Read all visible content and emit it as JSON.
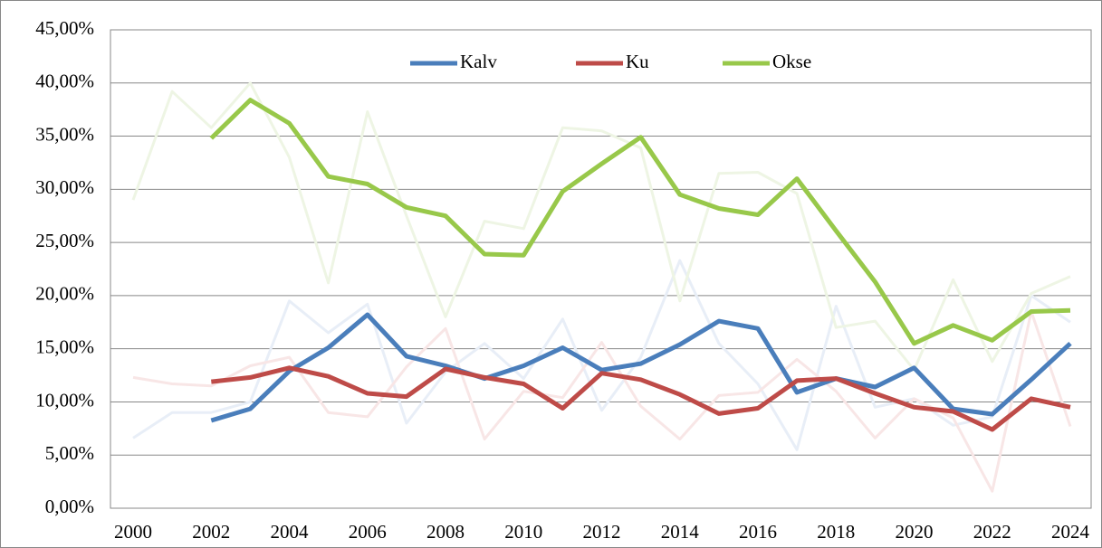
{
  "chart_data": {
    "type": "line",
    "categories": [
      "2000",
      null,
      "2002",
      null,
      "2004",
      null,
      "2006",
      null,
      "2008",
      null,
      "2010",
      null,
      "2012",
      null,
      "2014",
      null,
      "2016",
      null,
      "2018",
      null,
      "2020",
      null,
      "2022",
      null,
      "2024"
    ],
    "series": [
      {
        "color": "#e8eef7",
        "values": [
          6.6,
          9.0,
          9.0,
          10.0,
          19.5,
          16.5,
          19.2,
          8.0,
          12.8,
          15.5,
          12.2,
          17.8,
          9.2,
          14.2,
          23.3,
          15.5,
          11.7,
          5.5,
          19.0,
          9.5,
          10.3,
          7.8,
          8.6,
          20.0,
          17.5
        ]
      },
      {
        "color": "#f8e6e6",
        "values": [
          12.3,
          11.7,
          11.5,
          13.4,
          14.2,
          9.0,
          8.6,
          13.3,
          16.9,
          6.5,
          11.0,
          10.4,
          15.6,
          9.6,
          6.5,
          10.6,
          10.9,
          14.0,
          11.0,
          6.6,
          10.3,
          8.5,
          1.6,
          18.5,
          7.7
        ]
      },
      {
        "color": "#eef5e4",
        "values": [
          29.0,
          39.2,
          35.8,
          40.0,
          33.0,
          21.2,
          37.3,
          27.5,
          18.0,
          27.0,
          26.3,
          35.8,
          35.5,
          33.9,
          19.5,
          31.5,
          31.6,
          29.6,
          17.0,
          17.6,
          13.0,
          21.5,
          13.8,
          20.2,
          21.8
        ]
      },
      {
        "name": "Kalv",
        "color": "#4a7ebb",
        "values": [
          null,
          null,
          8.25,
          9.35,
          12.9,
          15.1,
          18.2,
          14.3,
          13.4,
          12.2,
          13.4,
          15.1,
          13.0,
          13.6,
          15.4,
          17.6,
          16.9,
          10.9,
          12.2,
          11.4,
          13.2,
          9.35,
          8.85,
          12.1,
          15.5
        ]
      },
      {
        "name": "Ku",
        "color": "#be4b48",
        "values": [
          null,
          null,
          11.9,
          12.3,
          13.2,
          12.4,
          10.8,
          10.5,
          13.1,
          12.3,
          11.7,
          9.4,
          12.7,
          12.1,
          10.7,
          8.9,
          9.4,
          12.0,
          12.2,
          10.8,
          9.5,
          9.1,
          7.4,
          10.3,
          9.5
        ]
      },
      {
        "name": "Okse",
        "color": "#98c84a",
        "values": [
          null,
          null,
          34.8,
          38.4,
          36.2,
          31.2,
          30.5,
          28.3,
          27.5,
          23.9,
          23.8,
          29.8,
          32.4,
          34.9,
          29.5,
          28.2,
          27.6,
          31.0,
          26.1,
          21.3,
          15.5,
          17.2,
          15.8,
          18.5,
          18.6
        ]
      }
    ],
    "ylim": [
      0,
      45
    ],
    "yticks": [
      {
        "value": 0,
        "label": "0,00%"
      },
      {
        "value": 5,
        "label": "5,00%"
      },
      {
        "value": 10,
        "label": "10,00%"
      },
      {
        "value": 15,
        "label": "15,00%"
      },
      {
        "value": 20,
        "label": "20,00%"
      },
      {
        "value": 25,
        "label": "25,00%"
      },
      {
        "value": 30,
        "label": "30,00%"
      },
      {
        "value": 35,
        "label": "35,00%"
      },
      {
        "value": 40,
        "label": "40,00%"
      },
      {
        "value": 45,
        "label": "45,00%"
      }
    ],
    "grid": true
  }
}
